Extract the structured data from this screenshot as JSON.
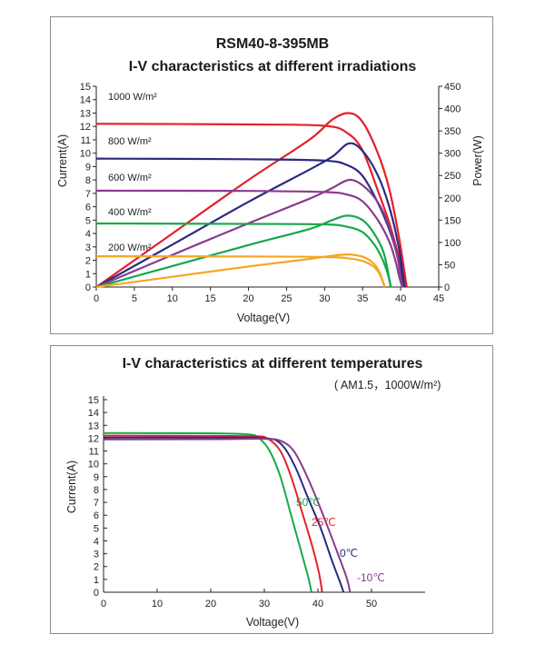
{
  "chart_data": [
    {
      "type": "line",
      "title": "RSM40-8-395MB",
      "subtitle": "I-V characteristics at different irradiations",
      "xlabel": "Voltage(V)",
      "ylabel": "Current(A)",
      "y2label": "Power(W)",
      "xlim": [
        0,
        45
      ],
      "ylim": [
        0,
        15
      ],
      "y2lim": [
        0,
        450
      ],
      "xticks": [
        "0",
        "5",
        "10",
        "15",
        "20",
        "25",
        "30",
        "35",
        "40",
        "45"
      ],
      "yticks": [
        "0",
        "1",
        "2",
        "3",
        "4",
        "5",
        "6",
        "7",
        "8",
        "9",
        "10",
        "11",
        "12",
        "13",
        "14",
        "15"
      ],
      "y2ticks": [
        "0",
        "50",
        "100",
        "150",
        "200",
        "250",
        "300",
        "350",
        "400",
        "450"
      ],
      "grid": false,
      "series": [
        {
          "name": "1000 W/m²",
          "color": "#e4202a",
          "iv": [
            [
              0,
              12.2
            ],
            [
              20,
              12.15
            ],
            [
              30,
              12.05
            ],
            [
              33,
              11.5
            ],
            [
              35,
              10.2
            ],
            [
              37,
              7.2
            ],
            [
              38.5,
              4.8
            ],
            [
              39.5,
              2.8
            ],
            [
              40.3,
              1.0
            ],
            [
              40.8,
              0
            ]
          ],
          "pv": [
            [
              0,
              0
            ],
            [
              10,
              120
            ],
            [
              20,
              240
            ],
            [
              28,
              330
            ],
            [
              31,
              375
            ],
            [
              33.2,
              390
            ],
            [
              35,
              370
            ],
            [
              37,
              300
            ],
            [
              38.5,
              220
            ],
            [
              39.8,
              110
            ],
            [
              40.8,
              0
            ]
          ]
        },
        {
          "name": "800 W/m²",
          "color": "#2a2a84",
          "iv": [
            [
              0,
              9.6
            ],
            [
              20,
              9.55
            ],
            [
              30,
              9.45
            ],
            [
              33,
              9.1
            ],
            [
              35,
              8.3
            ],
            [
              37,
              6.3
            ],
            [
              38.5,
              4.3
            ],
            [
              39.5,
              2.5
            ],
            [
              40.1,
              1.0
            ],
            [
              40.5,
              0
            ]
          ],
          "pv": [
            [
              0,
              0
            ],
            [
              10,
              95
            ],
            [
              20,
              191
            ],
            [
              28,
              263
            ],
            [
              31,
              292
            ],
            [
              33.2,
              322
            ],
            [
              35,
              305
            ],
            [
              37,
              250
            ],
            [
              38.5,
              180
            ],
            [
              39.8,
              85
            ],
            [
              40.5,
              0
            ]
          ]
        },
        {
          "name": "600 W/m²",
          "color": "#8b3a8f",
          "iv": [
            [
              0,
              7.2
            ],
            [
              20,
              7.18
            ],
            [
              30,
              7.1
            ],
            [
              33,
              6.9
            ],
            [
              35,
              6.4
            ],
            [
              37,
              5.0
            ],
            [
              38.5,
              3.4
            ],
            [
              39.3,
              2.0
            ],
            [
              39.8,
              0.8
            ],
            [
              40.2,
              0
            ]
          ],
          "pv": [
            [
              0,
              0
            ],
            [
              10,
              72
            ],
            [
              20,
              143
            ],
            [
              28,
              198
            ],
            [
              31,
              222
            ],
            [
              33.2,
              240
            ],
            [
              35,
              228
            ],
            [
              37,
              190
            ],
            [
              38.5,
              135
            ],
            [
              39.6,
              65
            ],
            [
              40.2,
              0
            ]
          ]
        },
        {
          "name": "400 W/m²",
          "color": "#16a84a",
          "iv": [
            [
              0,
              4.75
            ],
            [
              20,
              4.72
            ],
            [
              30,
              4.68
            ],
            [
              33,
              4.5
            ],
            [
              35,
              4.1
            ],
            [
              36.5,
              3.2
            ],
            [
              37.5,
              2.2
            ],
            [
              38.3,
              1.0
            ],
            [
              38.7,
              0
            ]
          ],
          "pv": [
            [
              0,
              0
            ],
            [
              10,
              47
            ],
            [
              20,
              94
            ],
            [
              28,
              130
            ],
            [
              31,
              150
            ],
            [
              33,
              160
            ],
            [
              35,
              150
            ],
            [
              36.5,
              120
            ],
            [
              37.8,
              75
            ],
            [
              38.7,
              0
            ]
          ]
        },
        {
          "name": "200 W/m²",
          "color": "#f5a623",
          "iv": [
            [
              0,
              2.3
            ],
            [
              20,
              2.28
            ],
            [
              30,
              2.25
            ],
            [
              33,
              2.15
            ],
            [
              35,
              1.95
            ],
            [
              36.5,
              1.5
            ],
            [
              37.3,
              0.9
            ],
            [
              37.9,
              0
            ]
          ],
          "pv": [
            [
              0,
              0
            ],
            [
              10,
              23
            ],
            [
              20,
              46
            ],
            [
              28,
              63
            ],
            [
              31,
              70
            ],
            [
              33,
              73
            ],
            [
              35,
              68
            ],
            [
              36.5,
              52
            ],
            [
              37.3,
              30
            ],
            [
              37.9,
              0
            ]
          ]
        }
      ]
    },
    {
      "type": "line",
      "title": "I-V characteristics at different temperatures",
      "subtitle": "( AM1.5，1000W/m²)",
      "xlabel": "Voltage(V)",
      "ylabel": "Current(A)",
      "xlim": [
        0,
        60
      ],
      "ylim": [
        0,
        15
      ],
      "xticks": [
        "0",
        "10",
        "20",
        "30",
        "40",
        "50"
      ],
      "yticks": [
        "0",
        "1",
        "2",
        "3",
        "4",
        "5",
        "6",
        "7",
        "8",
        "9",
        "10",
        "11",
        "12",
        "13",
        "14",
        "15"
      ],
      "grid": false,
      "series": [
        {
          "name": "50℃",
          "color": "#16a84a",
          "iv": [
            [
              0,
              12.4
            ],
            [
              20,
              12.38
            ],
            [
              27,
              12.3
            ],
            [
              29,
              12.0
            ],
            [
              31,
              11.0
            ],
            [
              33,
              9.0
            ],
            [
              35,
              6.0
            ],
            [
              37,
              3.0
            ],
            [
              38.3,
              1.0
            ],
            [
              38.8,
              0
            ]
          ]
        },
        {
          "name": "25℃",
          "color": "#e4202a",
          "iv": [
            [
              0,
              12.2
            ],
            [
              20,
              12.18
            ],
            [
              28,
              12.15
            ],
            [
              30.5,
              12.0
            ],
            [
              33,
              11.0
            ],
            [
              35,
              9.0
            ],
            [
              37,
              6.3
            ],
            [
              39,
              3.5
            ],
            [
              40.2,
              1.5
            ],
            [
              40.8,
              0
            ]
          ]
        },
        {
          "name": "0℃",
          "color": "#2a2a84",
          "iv": [
            [
              0,
              12.05
            ],
            [
              22,
              12.05
            ],
            [
              30,
              12.0
            ],
            [
              33,
              11.6
            ],
            [
              35.5,
              10.0
            ],
            [
              38,
              7.5
            ],
            [
              40.5,
              5.0
            ],
            [
              42.5,
              2.6
            ],
            [
              44.2,
              0.7
            ],
            [
              44.8,
              0
            ]
          ]
        },
        {
          "name": "-10℃",
          "color": "#8b3a8f",
          "iv": [
            [
              0,
              11.9
            ],
            [
              22,
              11.92
            ],
            [
              30,
              11.95
            ],
            [
              33,
              11.8
            ],
            [
              35.5,
              11.0
            ],
            [
              38,
              9.0
            ],
            [
              40.5,
              6.5
            ],
            [
              43,
              3.8
            ],
            [
              45.3,
              1.2
            ],
            [
              46,
              0
            ]
          ]
        }
      ]
    }
  ]
}
